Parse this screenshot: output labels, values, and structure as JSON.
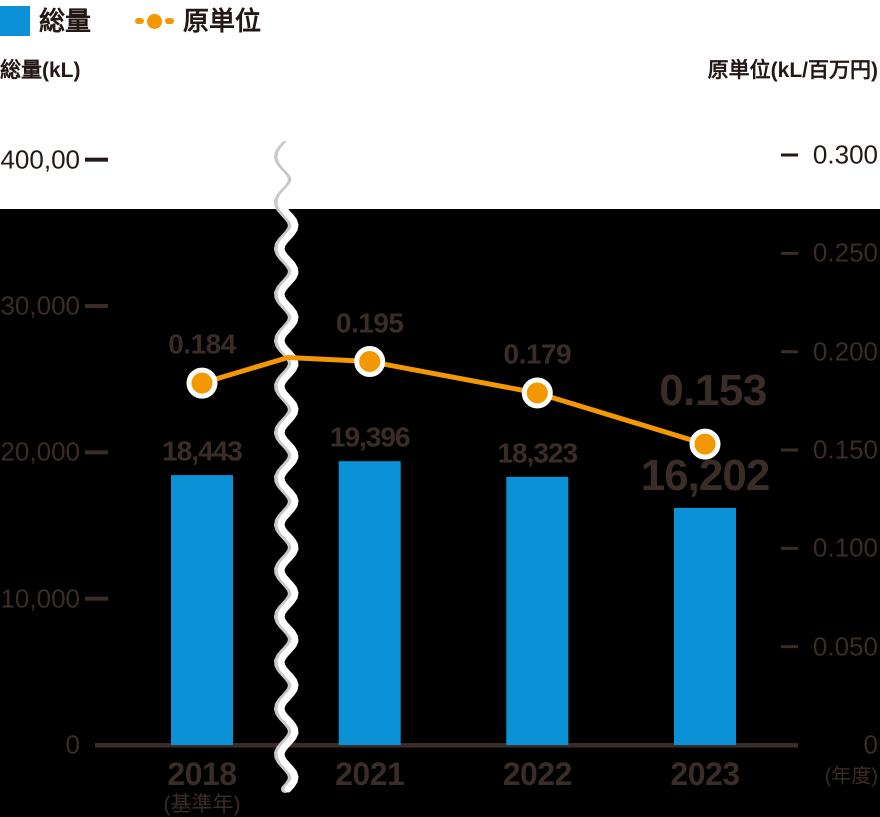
{
  "legend": {
    "total_label": "総量",
    "intensity_label": "原単位"
  },
  "titles": {
    "left_axis_title": "総量(kL)",
    "right_axis_title": "原単位(kL/百万円)"
  },
  "footnotes": {
    "base_year_note": "(基準年)",
    "x_unit_label": "(年度)"
  },
  "chart_data": {
    "type": "combo-bar-line",
    "categories": [
      "2018",
      "2021",
      "2022",
      "2023"
    ],
    "series": [
      {
        "name": "総量",
        "chart": "bar",
        "axis": "left",
        "unit": "kL",
        "color": "#0b91d5",
        "values": [
          18443,
          19396,
          18323,
          16202
        ],
        "value_labels": [
          "18,443",
          "19,396",
          "18,323",
          "16,202"
        ]
      },
      {
        "name": "原単位",
        "chart": "line",
        "axis": "right",
        "unit": "kL/百万円",
        "color": "#f39800",
        "values": [
          0.184,
          0.195,
          0.179,
          0.153
        ],
        "value_labels": [
          "0.184",
          "0.195",
          "0.179",
          "0.153"
        ]
      }
    ],
    "left_axis": {
      "title": "総量(kL)",
      "range": [
        0,
        40000
      ],
      "ticks": [
        {
          "label": "0",
          "value": 0
        },
        {
          "label": "10,000",
          "value": 10000
        },
        {
          "label": "20,000",
          "value": 20000
        },
        {
          "label": "30,000",
          "value": 30000
        },
        {
          "label": "400,00",
          "value": 40000
        }
      ]
    },
    "right_axis": {
      "title": "原単位(kL/百万円)",
      "range": [
        0,
        0.3
      ],
      "ticks": [
        {
          "label": "0",
          "value": 0
        },
        {
          "label": "0.050",
          "value": 0.05
        },
        {
          "label": "0.100",
          "value": 0.1
        },
        {
          "label": "0.150",
          "value": 0.15
        },
        {
          "label": "0.200",
          "value": 0.2
        },
        {
          "label": "0.250",
          "value": 0.25
        },
        {
          "label": "0.300",
          "value": 0.3
        }
      ]
    },
    "x_axis": {
      "unit_label": "(年度)",
      "base_year": "2018",
      "base_year_note": "(基準年)",
      "break_between": [
        "2018",
        "2021"
      ]
    },
    "emphasized_category": "2023",
    "legend_position": "top-left",
    "grid": false
  },
  "colors": {
    "bar_blue": "#0b91d5",
    "line_orange": "#f39800",
    "plot_background": "#000000",
    "page_background": "#ffffff",
    "axis_break_gray": "#c9c9c9",
    "ink_text": "#231815",
    "plot_text": "#3a2c26"
  }
}
